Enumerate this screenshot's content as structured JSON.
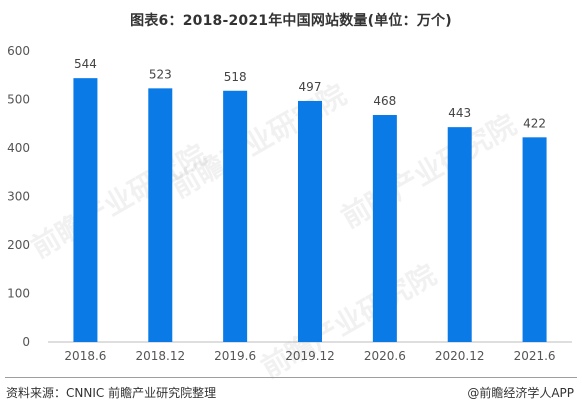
{
  "title": "图表6：2018-2021年中国网站数量(单位：万个)",
  "chart_data": {
    "type": "bar",
    "categories": [
      "2018.6",
      "2018.12",
      "2019.6",
      "2019.12",
      "2020.6",
      "2020.12",
      "2021.6"
    ],
    "values": [
      544,
      523,
      518,
      497,
      468,
      443,
      422
    ],
    "yticks": [
      0,
      100,
      200,
      300,
      400,
      500,
      600
    ],
    "ylim": [
      0,
      600
    ],
    "grid": false,
    "bar_color": "#0a7ae6"
  },
  "footer": {
    "source": "资料来源：CNNIC 前瞻产业研究院整理",
    "brand": "@前瞻经济学人APP"
  },
  "watermark_text": "前瞻产业研究院"
}
